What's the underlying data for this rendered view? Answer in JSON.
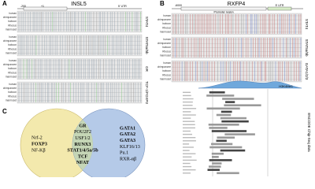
{
  "panel_a": {
    "label": "A",
    "title": "INSL5",
    "ruler": [
      "-200",
      "+1",
      "5' UTR"
    ],
    "species": [
      "human",
      "chimpanzee",
      "baboon",
      "Rhesus",
      "marmoset"
    ],
    "tracks": [
      "STAT4",
      "STAT5a/5b",
      "GR",
      "TCF-1/FOXP3"
    ]
  },
  "panel_b": {
    "label": "B",
    "title": "RXFP4",
    "ruler": [
      "-6000",
      "Promoter region",
      "5' UTR"
    ],
    "species": [
      "human",
      "chimpanzee",
      "baboon",
      "Rhesus",
      "marmoset"
    ],
    "tracks": [
      "STAT4",
      "STAT5a/5b",
      "GATA1/2/3"
    ],
    "annotations": [
      "H3K4Me1",
      "ENCODE Chip-Seq data"
    ]
  },
  "panel_c": {
    "label": "C",
    "left": [
      "Nrf-2",
      "FOXP3",
      "NF-Kβ"
    ],
    "shared": [
      "GR",
      "POU2F2",
      "USF1/2",
      "RUNX3",
      "STAT1/4/5a/5b",
      "TCF",
      "NFAT"
    ],
    "right": [
      "GATA1",
      "GATA2",
      "GATA3",
      "KLF16/13",
      "Pu.1",
      "RXR-αβ"
    ]
  }
}
